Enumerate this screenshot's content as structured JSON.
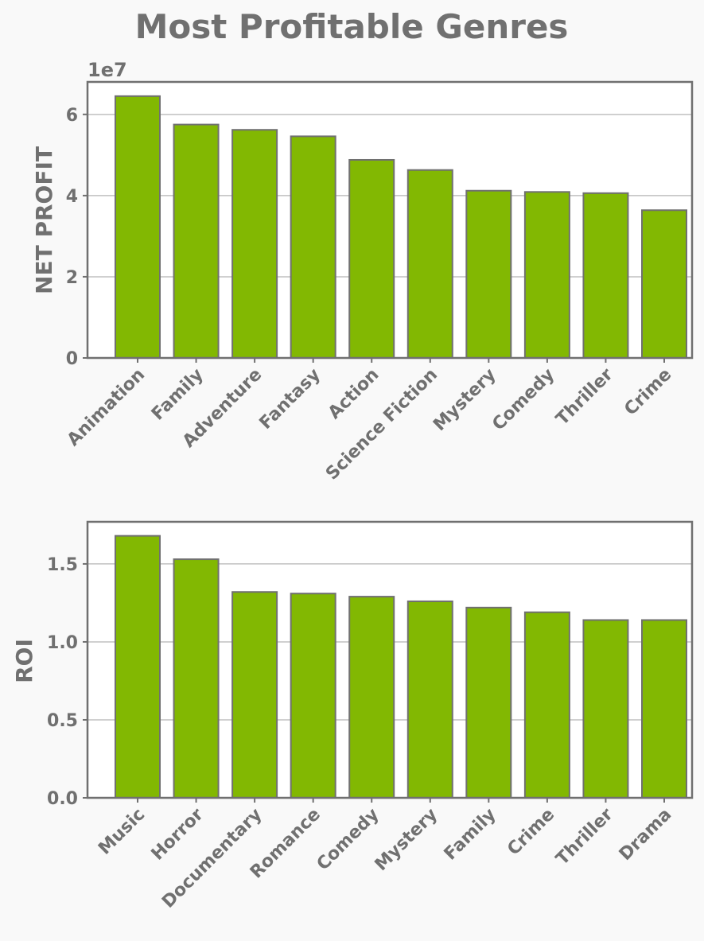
{
  "title": "Most Profitable Genres",
  "colors": {
    "bar": "#82b802",
    "edge": "#707070",
    "background": "#f9f9f9"
  },
  "chart_data": [
    {
      "type": "bar",
      "categories": [
        "Animation",
        "Family",
        "Adventure",
        "Fantasy",
        "Action",
        "Science Fiction",
        "Mystery",
        "Comedy",
        "Thriller",
        "Crime"
      ],
      "values": [
        64500000,
        57500000,
        56200000,
        54600000,
        48800000,
        46300000,
        41200000,
        40900000,
        40600000,
        36400000
      ],
      "ylabel": "NET PROFIT",
      "offset_label": "1e7",
      "scale": 10000000,
      "ylim": [
        0,
        68000000
      ],
      "yticks": [
        0,
        20000000,
        40000000,
        60000000
      ],
      "ytick_labels": [
        "0",
        "2",
        "4",
        "6"
      ],
      "grid": true
    },
    {
      "type": "bar",
      "categories": [
        "Music",
        "Horror",
        "Documentary",
        "Romance",
        "Comedy",
        "Mystery",
        "Family",
        "Crime",
        "Thriller",
        "Drama"
      ],
      "values": [
        1.68,
        1.53,
        1.32,
        1.31,
        1.29,
        1.26,
        1.22,
        1.19,
        1.14,
        1.14
      ],
      "ylabel": "ROI",
      "ylim": [
        0,
        1.77
      ],
      "yticks": [
        0,
        0.5,
        1.0,
        1.5
      ],
      "ytick_labels": [
        "0.0",
        "0.5",
        "1.0",
        "1.5"
      ],
      "grid": true
    }
  ]
}
